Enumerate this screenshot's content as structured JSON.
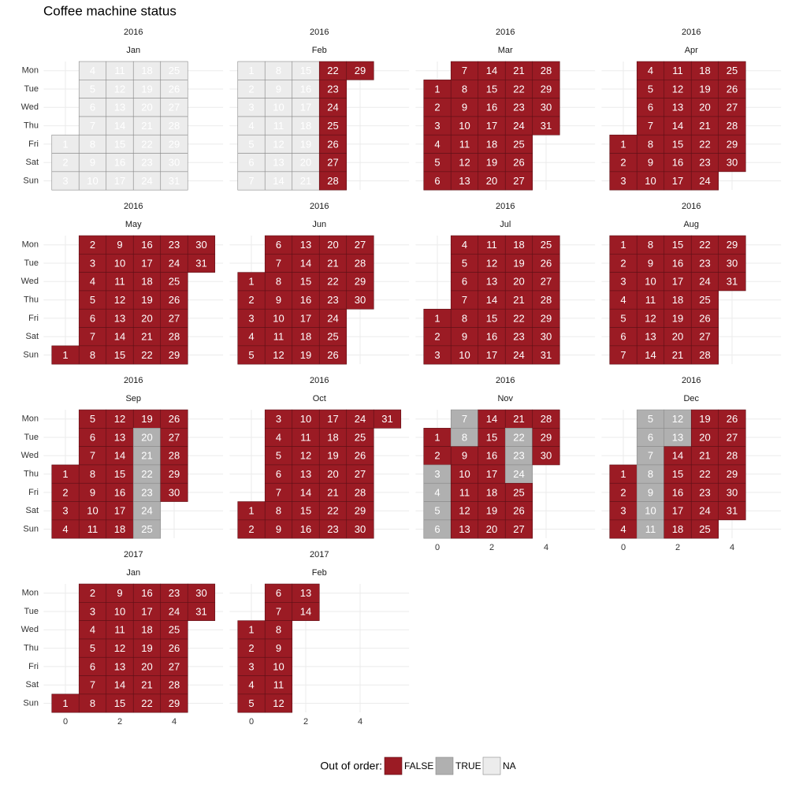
{
  "chart_data": {
    "type": "calendar",
    "title": "Coffee machine status",
    "weekdays": [
      "Mon",
      "Tue",
      "Wed",
      "Thu",
      "Fri",
      "Sat",
      "Sun"
    ],
    "xlim": [
      -0.8,
      5.8
    ],
    "xticks": [
      0,
      2,
      4
    ],
    "grid": true,
    "legend_title": "Out of order:",
    "legend_position": "bottom",
    "legend": [
      {
        "name": "FALSE",
        "color": "#9b1b24"
      },
      {
        "name": "TRUE",
        "color": "#b0b0b0"
      },
      {
        "name": "NA",
        "color": "#ececec"
      }
    ],
    "panels": [
      {
        "year": 2016,
        "month": "Jan",
        "days": [
          1,
          2,
          3,
          4,
          5,
          6,
          7,
          8,
          9,
          10,
          11,
          12,
          13,
          14,
          15,
          16,
          17,
          18,
          19,
          20,
          21,
          22,
          23,
          24,
          25,
          26,
          27,
          28,
          29,
          30,
          31
        ],
        "status": [
          "NA",
          "NA",
          "NA",
          "NA",
          "NA",
          "NA",
          "NA",
          "NA",
          "NA",
          "NA",
          "NA",
          "NA",
          "NA",
          "NA",
          "NA",
          "NA",
          "NA",
          "NA",
          "NA",
          "NA",
          "NA",
          "NA",
          "NA",
          "NA",
          "NA",
          "NA",
          "NA",
          "NA",
          "NA",
          "NA",
          "NA"
        ]
      },
      {
        "year": 2016,
        "month": "Feb",
        "days": [
          1,
          2,
          3,
          4,
          5,
          6,
          7,
          8,
          9,
          10,
          11,
          12,
          13,
          14,
          15,
          16,
          17,
          18,
          19,
          20,
          21,
          22,
          23,
          24,
          25,
          26,
          27,
          28,
          29
        ],
        "status": [
          "NA",
          "NA",
          "NA",
          "NA",
          "NA",
          "NA",
          "NA",
          "NA",
          "NA",
          "NA",
          "NA",
          "NA",
          "NA",
          "NA",
          "NA",
          "NA",
          "NA",
          "NA",
          "NA",
          "NA",
          "NA",
          "FALSE",
          "FALSE",
          "FALSE",
          "FALSE",
          "FALSE",
          "FALSE",
          "FALSE",
          "FALSE"
        ]
      },
      {
        "year": 2016,
        "month": "Mar",
        "days": [
          1,
          2,
          3,
          4,
          5,
          6,
          7,
          8,
          9,
          10,
          11,
          12,
          13,
          14,
          15,
          16,
          17,
          18,
          19,
          20,
          21,
          22,
          23,
          24,
          25,
          26,
          27,
          28,
          29,
          30,
          31
        ],
        "status": [
          "FALSE",
          "FALSE",
          "FALSE",
          "FALSE",
          "FALSE",
          "FALSE",
          "FALSE",
          "FALSE",
          "FALSE",
          "FALSE",
          "FALSE",
          "FALSE",
          "FALSE",
          "FALSE",
          "FALSE",
          "FALSE",
          "FALSE",
          "FALSE",
          "FALSE",
          "FALSE",
          "FALSE",
          "FALSE",
          "FALSE",
          "FALSE",
          "FALSE",
          "FALSE",
          "FALSE",
          "FALSE",
          "FALSE",
          "FALSE",
          "FALSE"
        ]
      },
      {
        "year": 2016,
        "month": "Apr",
        "days": [
          1,
          2,
          3,
          4,
          5,
          6,
          7,
          8,
          9,
          10,
          11,
          12,
          13,
          14,
          15,
          16,
          17,
          18,
          19,
          20,
          21,
          22,
          23,
          24,
          25,
          26,
          27,
          28,
          29,
          30
        ],
        "status": [
          "FALSE",
          "FALSE",
          "FALSE",
          "FALSE",
          "FALSE",
          "FALSE",
          "FALSE",
          "FALSE",
          "FALSE",
          "FALSE",
          "FALSE",
          "FALSE",
          "FALSE",
          "FALSE",
          "FALSE",
          "FALSE",
          "FALSE",
          "FALSE",
          "FALSE",
          "FALSE",
          "FALSE",
          "FALSE",
          "FALSE",
          "FALSE",
          "FALSE",
          "FALSE",
          "FALSE",
          "FALSE",
          "FALSE",
          "FALSE"
        ]
      },
      {
        "year": 2016,
        "month": "May",
        "days": [
          1,
          2,
          3,
          4,
          5,
          6,
          7,
          8,
          9,
          10,
          11,
          12,
          13,
          14,
          15,
          16,
          17,
          18,
          19,
          20,
          21,
          22,
          23,
          24,
          25,
          26,
          27,
          28,
          29,
          30,
          31
        ],
        "status": [
          "FALSE",
          "FALSE",
          "FALSE",
          "FALSE",
          "FALSE",
          "FALSE",
          "FALSE",
          "FALSE",
          "FALSE",
          "FALSE",
          "FALSE",
          "FALSE",
          "FALSE",
          "FALSE",
          "FALSE",
          "FALSE",
          "FALSE",
          "FALSE",
          "FALSE",
          "FALSE",
          "FALSE",
          "FALSE",
          "FALSE",
          "FALSE",
          "FALSE",
          "FALSE",
          "FALSE",
          "FALSE",
          "FALSE",
          "FALSE",
          "FALSE"
        ]
      },
      {
        "year": 2016,
        "month": "Jun",
        "days": [
          1,
          2,
          3,
          4,
          5,
          6,
          7,
          8,
          9,
          10,
          11,
          12,
          13,
          14,
          15,
          16,
          17,
          18,
          19,
          20,
          21,
          22,
          23,
          24,
          25,
          26,
          27,
          28,
          29,
          30
        ],
        "status": [
          "FALSE",
          "FALSE",
          "FALSE",
          "FALSE",
          "FALSE",
          "FALSE",
          "FALSE",
          "FALSE",
          "FALSE",
          "FALSE",
          "FALSE",
          "FALSE",
          "FALSE",
          "FALSE",
          "FALSE",
          "FALSE",
          "FALSE",
          "FALSE",
          "FALSE",
          "FALSE",
          "FALSE",
          "FALSE",
          "FALSE",
          "FALSE",
          "FALSE",
          "FALSE",
          "FALSE",
          "FALSE",
          "FALSE",
          "FALSE"
        ]
      },
      {
        "year": 2016,
        "month": "Jul",
        "days": [
          1,
          2,
          3,
          4,
          5,
          6,
          7,
          8,
          9,
          10,
          11,
          12,
          13,
          14,
          15,
          16,
          17,
          18,
          19,
          20,
          21,
          22,
          23,
          24,
          25,
          26,
          27,
          28,
          29,
          30,
          31
        ],
        "status": [
          "FALSE",
          "FALSE",
          "FALSE",
          "FALSE",
          "FALSE",
          "FALSE",
          "FALSE",
          "FALSE",
          "FALSE",
          "FALSE",
          "FALSE",
          "FALSE",
          "FALSE",
          "FALSE",
          "FALSE",
          "FALSE",
          "FALSE",
          "FALSE",
          "FALSE",
          "FALSE",
          "FALSE",
          "FALSE",
          "FALSE",
          "FALSE",
          "FALSE",
          "FALSE",
          "FALSE",
          "FALSE",
          "FALSE",
          "FALSE",
          "FALSE"
        ]
      },
      {
        "year": 2016,
        "month": "Aug",
        "days": [
          1,
          2,
          3,
          4,
          5,
          6,
          7,
          8,
          9,
          10,
          11,
          12,
          13,
          14,
          15,
          16,
          17,
          18,
          19,
          20,
          21,
          22,
          23,
          24,
          25,
          26,
          27,
          28,
          29,
          30,
          31
        ],
        "status": [
          "FALSE",
          "FALSE",
          "FALSE",
          "FALSE",
          "FALSE",
          "FALSE",
          "FALSE",
          "FALSE",
          "FALSE",
          "FALSE",
          "FALSE",
          "FALSE",
          "FALSE",
          "FALSE",
          "FALSE",
          "FALSE",
          "FALSE",
          "FALSE",
          "FALSE",
          "FALSE",
          "FALSE",
          "FALSE",
          "FALSE",
          "FALSE",
          "FALSE",
          "FALSE",
          "FALSE",
          "FALSE",
          "FALSE",
          "FALSE",
          "FALSE"
        ]
      },
      {
        "year": 2016,
        "month": "Sep",
        "days": [
          1,
          2,
          3,
          4,
          5,
          6,
          7,
          8,
          9,
          10,
          11,
          12,
          13,
          14,
          15,
          16,
          17,
          18,
          19,
          20,
          21,
          22,
          23,
          24,
          25,
          26,
          27,
          28,
          29,
          30
        ],
        "status": [
          "FALSE",
          "FALSE",
          "FALSE",
          "FALSE",
          "FALSE",
          "FALSE",
          "FALSE",
          "FALSE",
          "FALSE",
          "FALSE",
          "FALSE",
          "FALSE",
          "FALSE",
          "FALSE",
          "FALSE",
          "FALSE",
          "FALSE",
          "FALSE",
          "FALSE",
          "TRUE",
          "TRUE",
          "TRUE",
          "TRUE",
          "TRUE",
          "TRUE",
          "FALSE",
          "FALSE",
          "FALSE",
          "FALSE",
          "FALSE"
        ]
      },
      {
        "year": 2016,
        "month": "Oct",
        "days": [
          1,
          2,
          3,
          4,
          5,
          6,
          7,
          8,
          9,
          10,
          11,
          12,
          13,
          14,
          15,
          16,
          17,
          18,
          19,
          20,
          21,
          22,
          23,
          24,
          25,
          26,
          27,
          28,
          29,
          30,
          31
        ],
        "status": [
          "FALSE",
          "FALSE",
          "FALSE",
          "FALSE",
          "FALSE",
          "FALSE",
          "FALSE",
          "FALSE",
          "FALSE",
          "FALSE",
          "FALSE",
          "FALSE",
          "FALSE",
          "FALSE",
          "FALSE",
          "FALSE",
          "FALSE",
          "FALSE",
          "FALSE",
          "FALSE",
          "FALSE",
          "FALSE",
          "FALSE",
          "FALSE",
          "FALSE",
          "FALSE",
          "FALSE",
          "FALSE",
          "FALSE",
          "FALSE",
          "FALSE"
        ]
      },
      {
        "year": 2016,
        "month": "Nov",
        "days": [
          1,
          2,
          3,
          4,
          5,
          6,
          7,
          8,
          9,
          10,
          11,
          12,
          13,
          14,
          15,
          16,
          17,
          18,
          19,
          20,
          21,
          22,
          23,
          24,
          25,
          26,
          27,
          28,
          29,
          30
        ],
        "status": [
          "FALSE",
          "FALSE",
          "TRUE",
          "TRUE",
          "TRUE",
          "TRUE",
          "TRUE",
          "TRUE",
          "FALSE",
          "FALSE",
          "FALSE",
          "FALSE",
          "FALSE",
          "FALSE",
          "FALSE",
          "FALSE",
          "FALSE",
          "FALSE",
          "FALSE",
          "FALSE",
          "FALSE",
          "TRUE",
          "TRUE",
          "TRUE",
          "FALSE",
          "FALSE",
          "FALSE",
          "FALSE",
          "FALSE",
          "FALSE"
        ]
      },
      {
        "year": 2016,
        "month": "Dec",
        "days": [
          1,
          2,
          3,
          4,
          5,
          6,
          7,
          8,
          9,
          10,
          11,
          12,
          13,
          14,
          15,
          16,
          17,
          18,
          19,
          20,
          21,
          22,
          23,
          24,
          25,
          26,
          27,
          28,
          29,
          30,
          31
        ],
        "status": [
          "FALSE",
          "FALSE",
          "FALSE",
          "FALSE",
          "TRUE",
          "TRUE",
          "TRUE",
          "TRUE",
          "TRUE",
          "TRUE",
          "TRUE",
          "TRUE",
          "TRUE",
          "FALSE",
          "FALSE",
          "FALSE",
          "FALSE",
          "FALSE",
          "FALSE",
          "FALSE",
          "FALSE",
          "FALSE",
          "FALSE",
          "FALSE",
          "FALSE",
          "FALSE",
          "FALSE",
          "FALSE",
          "FALSE",
          "FALSE",
          "FALSE"
        ]
      },
      {
        "year": 2017,
        "month": "Jan",
        "days": [
          1,
          2,
          3,
          4,
          5,
          6,
          7,
          8,
          9,
          10,
          11,
          12,
          13,
          14,
          15,
          16,
          17,
          18,
          19,
          20,
          21,
          22,
          23,
          24,
          25,
          26,
          27,
          28,
          29,
          30,
          31
        ],
        "status": [
          "FALSE",
          "FALSE",
          "FALSE",
          "FALSE",
          "FALSE",
          "FALSE",
          "FALSE",
          "FALSE",
          "FALSE",
          "FALSE",
          "FALSE",
          "FALSE",
          "FALSE",
          "FALSE",
          "FALSE",
          "FALSE",
          "FALSE",
          "FALSE",
          "FALSE",
          "FALSE",
          "FALSE",
          "FALSE",
          "FALSE",
          "FALSE",
          "FALSE",
          "FALSE",
          "FALSE",
          "FALSE",
          "FALSE",
          "FALSE",
          "FALSE"
        ]
      },
      {
        "year": 2017,
        "month": "Feb",
        "days": [
          1,
          2,
          3,
          4,
          5,
          6,
          7,
          8,
          9,
          10,
          11,
          12,
          13,
          14
        ],
        "status": [
          "FALSE",
          "FALSE",
          "FALSE",
          "FALSE",
          "FALSE",
          "FALSE",
          "FALSE",
          "FALSE",
          "FALSE",
          "FALSE",
          "FALSE",
          "FALSE",
          "FALSE",
          "FALSE"
        ]
      }
    ]
  }
}
